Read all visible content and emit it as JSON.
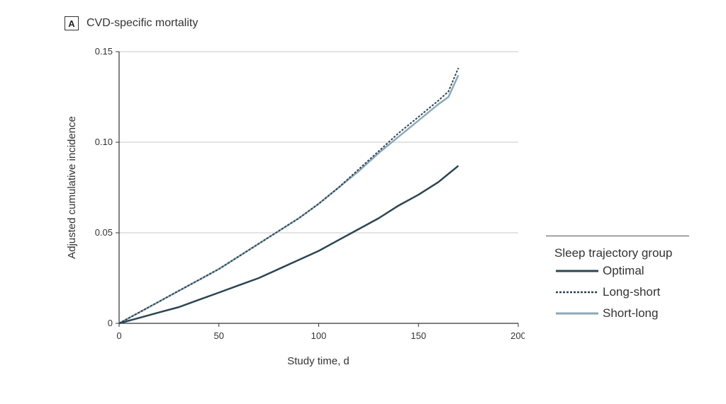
{
  "panel": {
    "letter": "A",
    "title": "CVD-specific mortality"
  },
  "chart_data": {
    "type": "line",
    "title": "CVD-specific mortality",
    "xlabel": "Study time, d",
    "ylabel": "Adjusted cumulative incidence",
    "xlim": [
      0,
      200
    ],
    "ylim": [
      0,
      0.15
    ],
    "xticks": [
      0,
      50,
      100,
      150,
      200
    ],
    "xtick_labels": [
      "0",
      "50",
      "100",
      "150",
      "200"
    ],
    "yticks": [
      0,
      0.05,
      0.1,
      0.15
    ],
    "ytick_labels": [
      "0",
      "0.05",
      "0.10",
      "0.15"
    ],
    "grid": "horizontal",
    "legend_title": "Sleep trajectory group",
    "legend_position": "right",
    "series": [
      {
        "name": "Optimal",
        "color": "#2c4552",
        "style": "solid",
        "x": [
          0,
          10,
          20,
          30,
          40,
          50,
          60,
          70,
          80,
          90,
          100,
          110,
          120,
          130,
          140,
          150,
          160,
          170
        ],
        "y": [
          0,
          0.003,
          0.006,
          0.009,
          0.013,
          0.017,
          0.021,
          0.025,
          0.03,
          0.035,
          0.04,
          0.046,
          0.052,
          0.058,
          0.065,
          0.071,
          0.078,
          0.087
        ]
      },
      {
        "name": "Long-short",
        "color": "#2c4552",
        "style": "dashed",
        "x": [
          0,
          10,
          20,
          30,
          40,
          50,
          60,
          70,
          80,
          90,
          100,
          110,
          120,
          130,
          140,
          150,
          160,
          165,
          170
        ],
        "y": [
          0,
          0.006,
          0.012,
          0.018,
          0.024,
          0.03,
          0.037,
          0.044,
          0.051,
          0.058,
          0.066,
          0.075,
          0.085,
          0.095,
          0.105,
          0.114,
          0.123,
          0.128,
          0.141
        ]
      },
      {
        "name": "Short-long",
        "color": "#8da8b8",
        "style": "solid",
        "x": [
          0,
          10,
          20,
          30,
          40,
          50,
          60,
          70,
          80,
          90,
          100,
          110,
          120,
          130,
          140,
          150,
          160,
          165,
          170
        ],
        "y": [
          0,
          0.006,
          0.012,
          0.018,
          0.024,
          0.03,
          0.037,
          0.044,
          0.051,
          0.058,
          0.066,
          0.075,
          0.084,
          0.094,
          0.103,
          0.112,
          0.121,
          0.125,
          0.137
        ]
      }
    ]
  }
}
